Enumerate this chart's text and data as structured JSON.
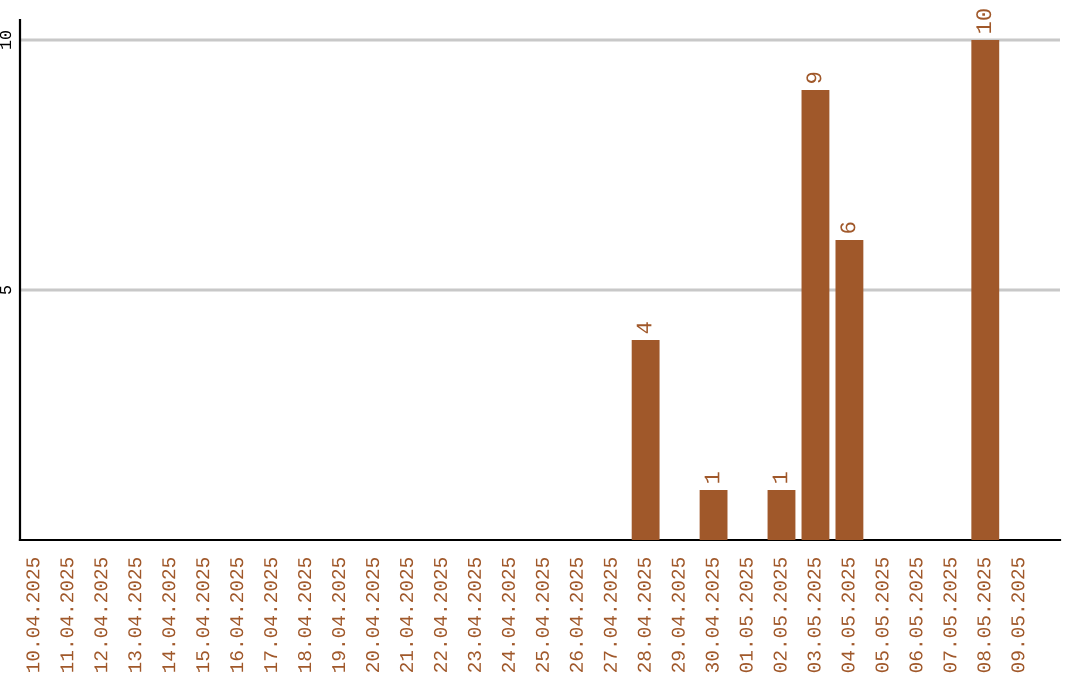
{
  "chart_data": {
    "type": "bar",
    "categories": [
      "10.04.2025",
      "11.04.2025",
      "12.04.2025",
      "13.04.2025",
      "14.04.2025",
      "15.04.2025",
      "16.04.2025",
      "17.04.2025",
      "18.04.2025",
      "19.04.2025",
      "20.04.2025",
      "21.04.2025",
      "22.04.2025",
      "23.04.2025",
      "24.04.2025",
      "25.04.2025",
      "26.04.2025",
      "27.04.2025",
      "28.04.2025",
      "29.04.2025",
      "30.04.2025",
      "01.05.2025",
      "02.05.2025",
      "03.05.2025",
      "04.05.2025",
      "05.05.2025",
      "06.05.2025",
      "07.05.2025",
      "08.05.2025",
      "09.05.2025"
    ],
    "values": [
      0,
      0,
      0,
      0,
      0,
      0,
      0,
      0,
      0,
      0,
      0,
      0,
      0,
      0,
      0,
      0,
      0,
      0,
      4,
      0,
      1,
      0,
      1,
      9,
      6,
      0,
      0,
      0,
      10,
      0
    ],
    "value_labels": [
      null,
      null,
      null,
      null,
      null,
      null,
      null,
      null,
      null,
      null,
      null,
      null,
      null,
      null,
      null,
      null,
      null,
      null,
      "4",
      null,
      "1",
      null,
      "1",
      "9",
      "6",
      null,
      null,
      null,
      "10",
      null
    ],
    "color": "#a0582a",
    "ylim": [
      0,
      10.4
    ],
    "yticks": [
      5,
      10
    ],
    "grid": "y",
    "legend": false
  }
}
